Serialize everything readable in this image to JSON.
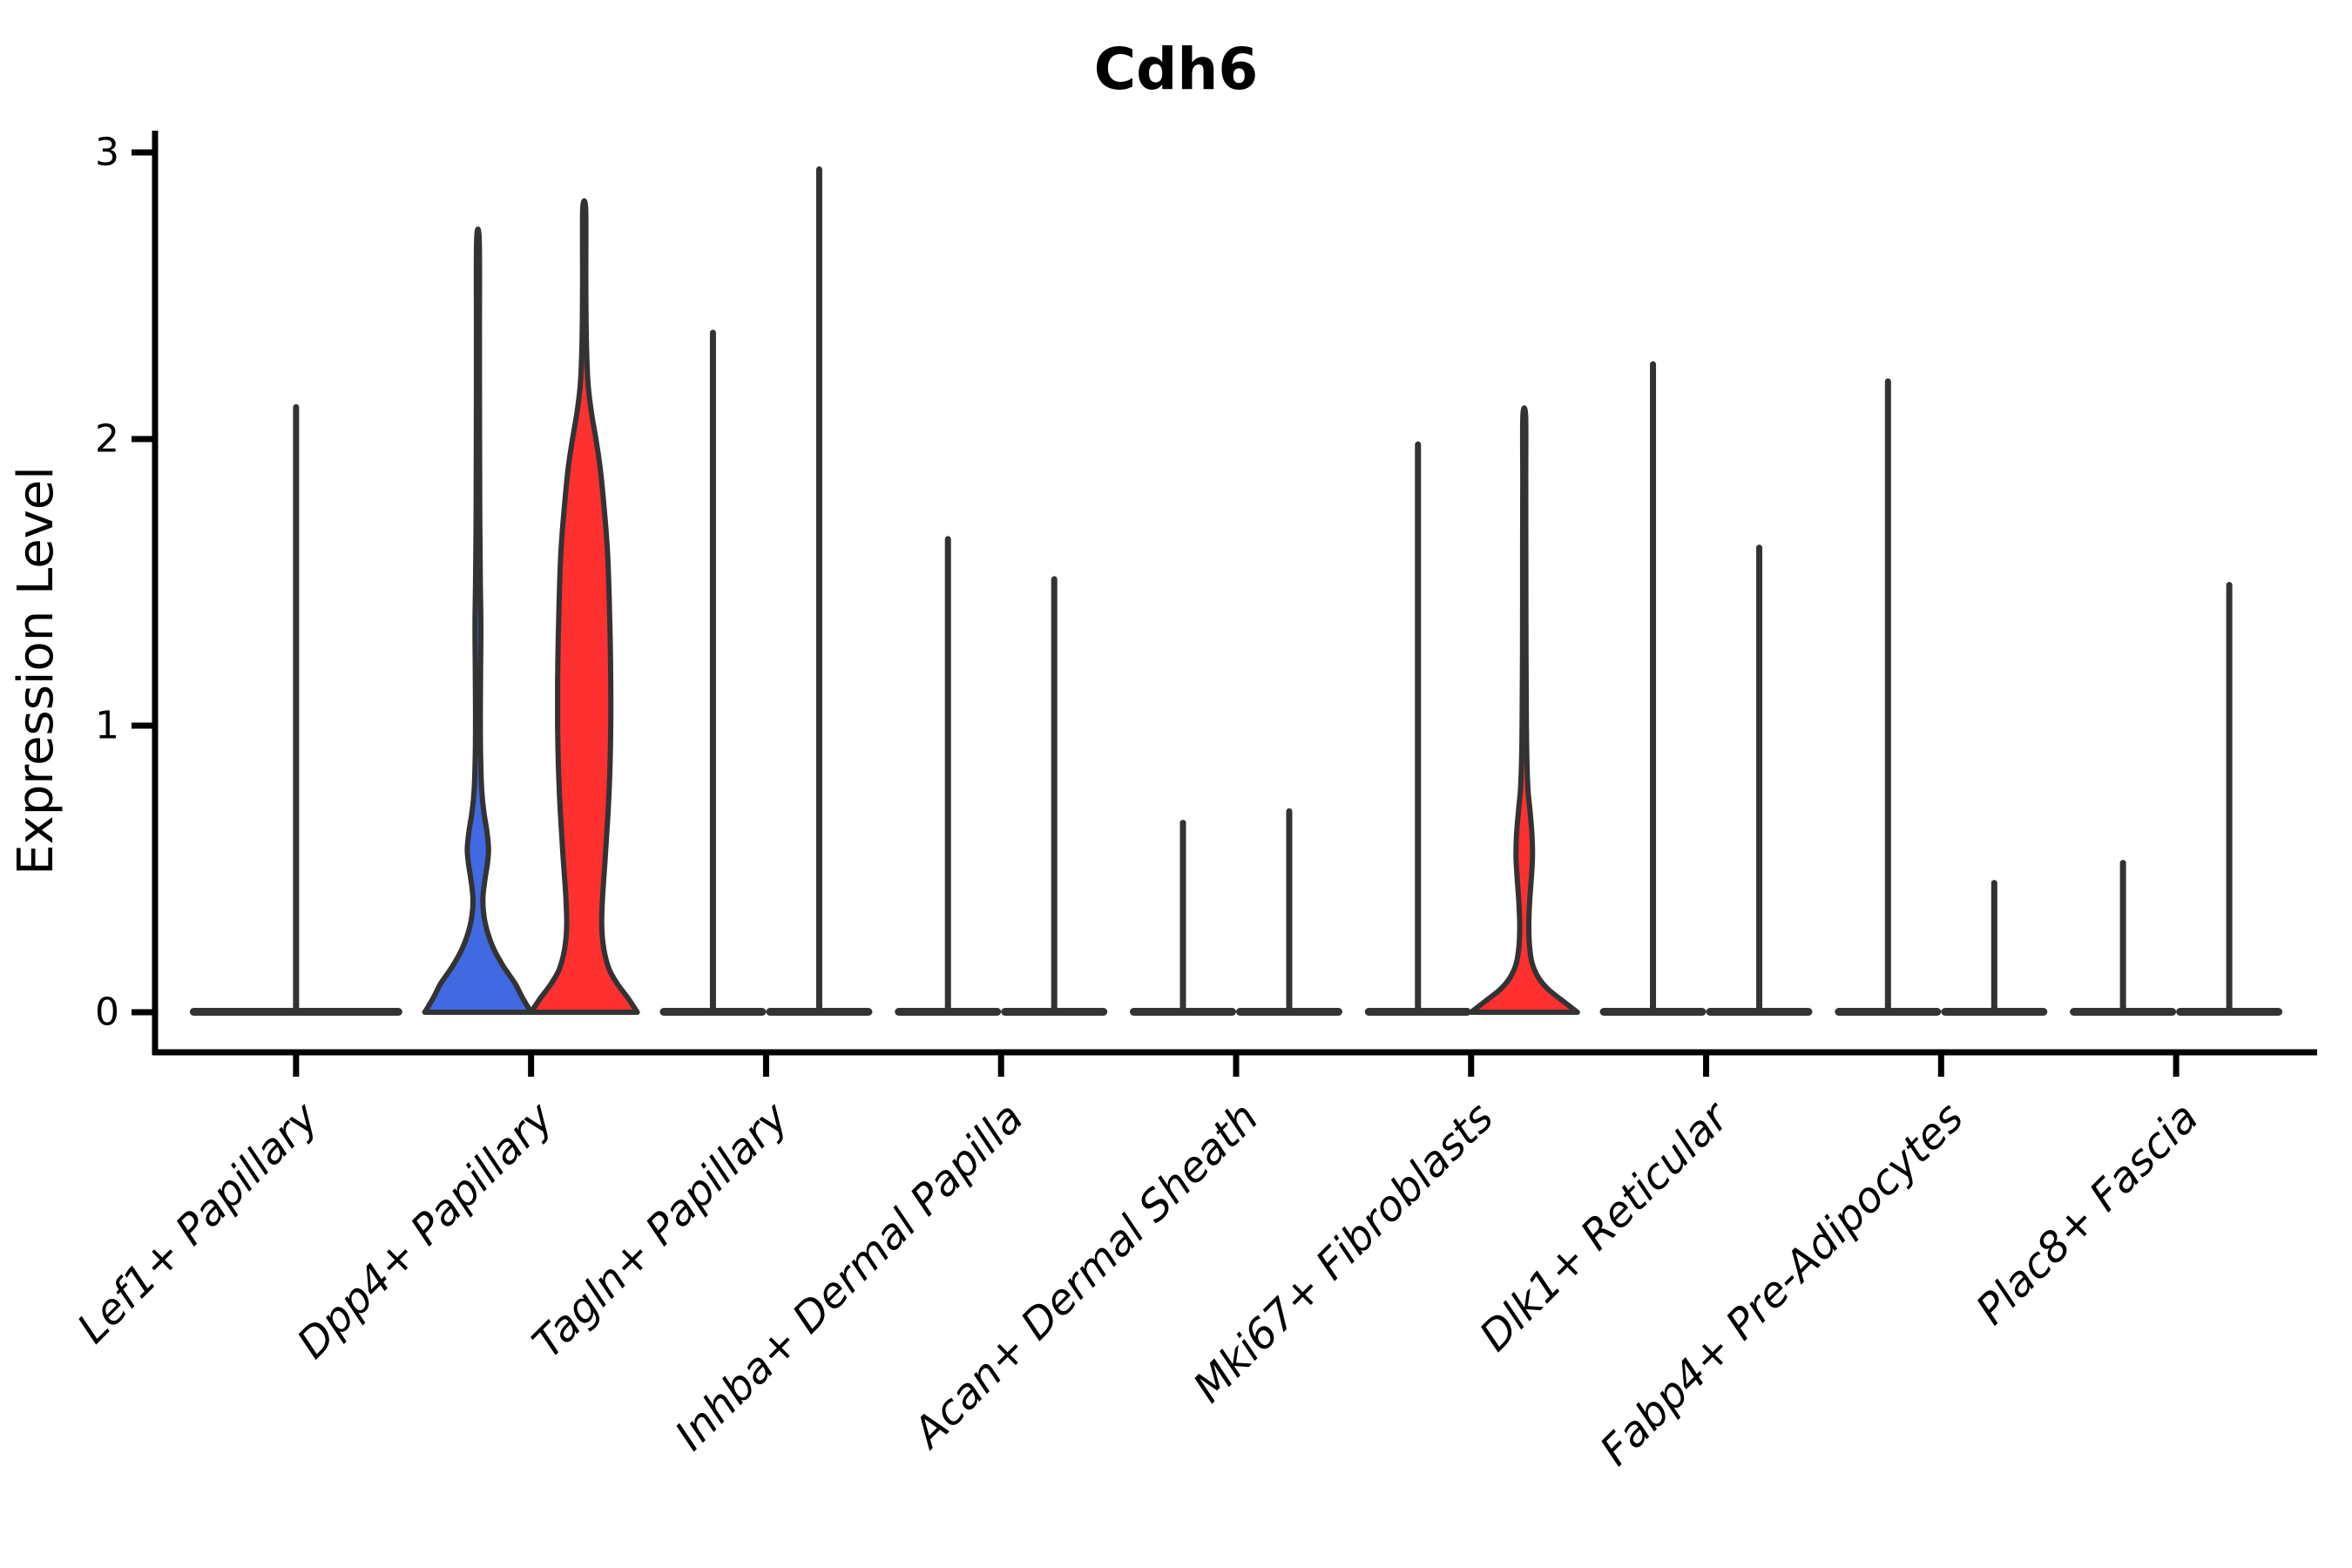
{
  "colors": {
    "blue": "#4169E1",
    "red": "#FF3030",
    "outline": "#333333",
    "axis": "#000000",
    "background": "#FFFFFF"
  },
  "chart_data": {
    "type": "violin",
    "title": "Cdh6",
    "xlabel": "",
    "ylabel": "Expression Level",
    "ylim": [
      0,
      3.1
    ],
    "y_ticks": [
      0,
      1,
      2,
      3
    ],
    "y_tick_labels": [
      "0",
      "1",
      "2",
      "3"
    ],
    "x_tick_rotation": 45,
    "grid": "off",
    "legend_position": "none",
    "categories": [
      "Lef1+ Papillary",
      "Dpp4+ Papillary",
      "Tagln+ Papillary",
      "Inhba+ Dermal Papilla",
      "Acan+ Dermal Sheath",
      "Mki67+ Fibroblasts",
      "Dlk1+ Reticular",
      "Fabp4+ Pre-Adipocytes",
      "Plac8+ Fascia"
    ],
    "groups": [
      {
        "category": "Lef1+ Papillary",
        "violins": [
          {
            "split": "full",
            "fill": null,
            "max_expression": 2.12
          }
        ]
      },
      {
        "category": "Dpp4+ Papillary",
        "violins": [
          {
            "split": "left",
            "fill": "blue",
            "max_expression": 2.69,
            "profile": [
              [
                0,
                1.0
              ],
              [
                0.05,
                0.84
              ],
              [
                0.1,
                0.7
              ],
              [
                0.16,
                0.48
              ],
              [
                0.22,
                0.3
              ],
              [
                0.28,
                0.18
              ],
              [
                0.34,
                0.11
              ],
              [
                0.4,
                0.095
              ],
              [
                0.46,
                0.13
              ],
              [
                0.52,
                0.18
              ],
              [
                0.57,
                0.2
              ],
              [
                0.63,
                0.17
              ],
              [
                0.7,
                0.11
              ],
              [
                0.78,
                0.07
              ],
              [
                0.9,
                0.05
              ],
              [
                1.05,
                0.045
              ],
              [
                1.2,
                0.05
              ],
              [
                1.35,
                0.055
              ],
              [
                1.5,
                0.045
              ],
              [
                1.7,
                0.035
              ],
              [
                2.0,
                0.03
              ],
              [
                2.35,
                0.028
              ],
              [
                2.69,
                0.026
              ]
            ]
          },
          {
            "split": "right",
            "fill": "red",
            "max_expression": 2.8,
            "profile": [
              [
                0,
                1.0
              ],
              [
                0.05,
                0.82
              ],
              [
                0.1,
                0.62
              ],
              [
                0.15,
                0.47
              ],
              [
                0.22,
                0.37
              ],
              [
                0.3,
                0.33
              ],
              [
                0.4,
                0.345
              ],
              [
                0.55,
                0.4
              ],
              [
                0.7,
                0.45
              ],
              [
                0.85,
                0.485
              ],
              [
                1.0,
                0.5
              ],
              [
                1.15,
                0.5
              ],
              [
                1.3,
                0.49
              ],
              [
                1.45,
                0.47
              ],
              [
                1.6,
                0.44
              ],
              [
                1.75,
                0.38
              ],
              [
                1.9,
                0.3
              ],
              [
                2.0,
                0.22
              ],
              [
                2.1,
                0.13
              ],
              [
                2.2,
                0.07
              ],
              [
                2.35,
                0.04
              ],
              [
                2.55,
                0.03
              ],
              [
                2.8,
                0.028
              ]
            ]
          }
        ]
      },
      {
        "category": "Tagln+ Papillary",
        "violins": [
          {
            "split": "left",
            "fill": null,
            "max_expression": 2.38
          },
          {
            "split": "right",
            "fill": null,
            "max_expression": 2.95
          }
        ]
      },
      {
        "category": "Inhba+ Dermal Papilla",
        "violins": [
          {
            "split": "left",
            "fill": null,
            "max_expression": 1.66
          },
          {
            "split": "right",
            "fill": null,
            "max_expression": 1.52
          }
        ]
      },
      {
        "category": "Acan+ Dermal Sheath",
        "violins": [
          {
            "split": "left",
            "fill": null,
            "max_expression": 0.67
          },
          {
            "split": "right",
            "fill": null,
            "max_expression": 0.71
          }
        ]
      },
      {
        "category": "Mki67+ Fibroblasts",
        "violins": [
          {
            "split": "left",
            "fill": null,
            "max_expression": 1.99
          },
          {
            "split": "right",
            "fill": "red",
            "max_expression": 2.08,
            "profile": [
              [
                0,
                1.0
              ],
              [
                0.04,
                0.72
              ],
              [
                0.08,
                0.45
              ],
              [
                0.12,
                0.27
              ],
              [
                0.17,
                0.15
              ],
              [
                0.23,
                0.1
              ],
              [
                0.3,
                0.085
              ],
              [
                0.38,
                0.1
              ],
              [
                0.46,
                0.13
              ],
              [
                0.54,
                0.155
              ],
              [
                0.62,
                0.145
              ],
              [
                0.7,
                0.11
              ],
              [
                0.78,
                0.07
              ],
              [
                0.88,
                0.05
              ],
              [
                1.0,
                0.04
              ],
              [
                1.25,
                0.033
              ],
              [
                1.6,
                0.03
              ],
              [
                1.85,
                0.028
              ],
              [
                2.08,
                0.026
              ]
            ]
          }
        ]
      },
      {
        "category": "Dlk1+ Reticular",
        "violins": [
          {
            "split": "left",
            "fill": null,
            "max_expression": 2.27
          },
          {
            "split": "right",
            "fill": null,
            "max_expression": 1.63
          }
        ]
      },
      {
        "category": "Fabp4+ Pre-Adipocytes",
        "violins": [
          {
            "split": "left",
            "fill": null,
            "max_expression": 2.21
          },
          {
            "split": "right",
            "fill": null,
            "max_expression": 0.46
          }
        ]
      },
      {
        "category": "Plac8+ Fascia",
        "violins": [
          {
            "split": "left",
            "fill": null,
            "max_expression": 0.53
          },
          {
            "split": "right",
            "fill": null,
            "max_expression": 1.5
          }
        ]
      }
    ]
  }
}
